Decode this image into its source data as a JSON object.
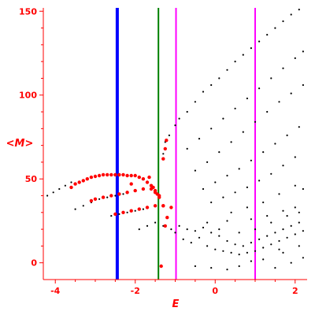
{
  "chart_data": {
    "type": "scatter",
    "title": "",
    "xlabel": "E",
    "ylabel": "<M>",
    "xlim": [
      -4.3,
      2.3
    ],
    "ylim": [
      -10,
      152
    ],
    "x_ticks": [
      -4,
      -2,
      0,
      2
    ],
    "x_tick_labels": [
      "-4",
      "-2",
      "0",
      "2"
    ],
    "y_ticks": [
      0,
      50,
      100,
      150
    ],
    "y_tick_labels": [
      "0",
      "50",
      "100",
      "150"
    ],
    "grid": false,
    "legend": "none",
    "colors": {
      "axis": "#ff0000",
      "points_black": "#000000",
      "points_red": "#ff0000",
      "line_blue": "#0000ff",
      "line_green": "#008000",
      "line_magenta": "#ff00ff"
    },
    "vertical_lines": [
      {
        "x": -2.45,
        "color": "#0000ff",
        "width": 4
      },
      {
        "x": -1.42,
        "color": "#008000",
        "width": 2
      },
      {
        "x": -0.98,
        "color": "#ff00ff",
        "width": 2
      },
      {
        "x": 1.0,
        "color": "#ff00ff",
        "width": 2
      }
    ],
    "series": [
      {
        "color": "#000000",
        "points": [
          [
            -4.2,
            40
          ],
          [
            -4.05,
            42
          ],
          [
            -3.9,
            44
          ],
          [
            -3.75,
            46
          ],
          [
            -3.6,
            48
          ],
          [
            -3.5,
            32
          ],
          [
            -3.3,
            34
          ],
          [
            -3.1,
            36
          ],
          [
            -2.9,
            38
          ],
          [
            -2.7,
            39
          ],
          [
            -2.5,
            40
          ],
          [
            -2.3,
            41
          ],
          [
            -2.6,
            28
          ],
          [
            -2.4,
            29
          ],
          [
            -2.2,
            30
          ],
          [
            -2.0,
            31
          ],
          [
            -1.8,
            32
          ],
          [
            -1.9,
            20
          ],
          [
            -1.7,
            22
          ],
          [
            -1.5,
            24
          ],
          [
            -1.3,
            22
          ],
          [
            -1.1,
            20
          ],
          [
            -1.3,
            65
          ],
          [
            -1.25,
            72
          ],
          [
            -1.15,
            76
          ],
          [
            -1.0,
            82
          ],
          [
            -0.9,
            86
          ],
          [
            -0.7,
            90
          ],
          [
            -0.5,
            96
          ],
          [
            -0.3,
            102
          ],
          [
            -0.1,
            106
          ],
          [
            0.1,
            110
          ],
          [
            0.3,
            115
          ],
          [
            0.5,
            120
          ],
          [
            0.7,
            124
          ],
          [
            0.9,
            128
          ],
          [
            1.1,
            132
          ],
          [
            1.3,
            136
          ],
          [
            1.5,
            140
          ],
          [
            1.7,
            144
          ],
          [
            1.9,
            148
          ],
          [
            2.1,
            151
          ],
          [
            -0.7,
            68
          ],
          [
            -0.4,
            74
          ],
          [
            -0.1,
            80
          ],
          [
            0.2,
            86
          ],
          [
            0.5,
            92
          ],
          [
            0.8,
            98
          ],
          [
            1.1,
            104
          ],
          [
            1.4,
            110
          ],
          [
            1.7,
            116
          ],
          [
            2.0,
            122
          ],
          [
            2.2,
            126
          ],
          [
            -0.5,
            55
          ],
          [
            -0.2,
            60
          ],
          [
            0.1,
            66
          ],
          [
            0.4,
            72
          ],
          [
            0.7,
            78
          ],
          [
            1.0,
            84
          ],
          [
            1.3,
            90
          ],
          [
            1.6,
            96
          ],
          [
            1.9,
            101
          ],
          [
            2.2,
            106
          ],
          [
            -0.3,
            44
          ],
          [
            0.0,
            48
          ],
          [
            0.3,
            52
          ],
          [
            0.6,
            56
          ],
          [
            0.9,
            61
          ],
          [
            1.2,
            66
          ],
          [
            1.5,
            71
          ],
          [
            1.8,
            76
          ],
          [
            2.1,
            81
          ],
          [
            -0.1,
            36
          ],
          [
            0.2,
            39
          ],
          [
            0.5,
            42
          ],
          [
            0.8,
            45
          ],
          [
            1.1,
            49
          ],
          [
            1.4,
            53
          ],
          [
            1.7,
            58
          ],
          [
            2.0,
            63
          ],
          [
            0.4,
            30
          ],
          [
            0.8,
            33
          ],
          [
            1.2,
            36
          ],
          [
            1.6,
            41
          ],
          [
            2.0,
            46
          ],
          [
            2.2,
            44
          ],
          [
            -0.9,
            22
          ],
          [
            -0.7,
            20
          ],
          [
            -0.5,
            19
          ],
          [
            -0.3,
            21
          ],
          [
            -0.1,
            18
          ],
          [
            0.1,
            16
          ],
          [
            0.3,
            13
          ],
          [
            0.5,
            11
          ],
          [
            0.7,
            10
          ],
          [
            0.9,
            12
          ],
          [
            1.1,
            14
          ],
          [
            1.3,
            16
          ],
          [
            1.5,
            18
          ],
          [
            1.7,
            20
          ],
          [
            1.9,
            22
          ],
          [
            2.1,
            24
          ],
          [
            -0.8,
            14
          ],
          [
            -0.6,
            12
          ],
          [
            -0.2,
            10
          ],
          [
            0.0,
            8
          ],
          [
            0.2,
            7
          ],
          [
            0.4,
            6
          ],
          [
            0.6,
            5
          ],
          [
            0.8,
            6
          ],
          [
            1.0,
            7
          ],
          [
            1.2,
            9
          ],
          [
            1.4,
            11
          ],
          [
            1.6,
            13
          ],
          [
            1.8,
            15
          ],
          [
            2.0,
            17
          ],
          [
            2.2,
            19
          ],
          [
            -1.0,
            18
          ],
          [
            -0.4,
            15
          ],
          [
            0.1,
            20
          ],
          [
            0.6,
            18
          ],
          [
            1.0,
            20
          ],
          [
            1.4,
            24
          ],
          [
            1.8,
            28
          ],
          [
            2.1,
            30
          ],
          [
            -0.2,
            24
          ],
          [
            0.3,
            25
          ],
          [
            0.9,
            26
          ],
          [
            1.3,
            28
          ],
          [
            1.7,
            31
          ],
          [
            2.0,
            33
          ],
          [
            -0.5,
            -2
          ],
          [
            -0.1,
            -3
          ],
          [
            0.3,
            -4
          ],
          [
            0.6,
            -2
          ],
          [
            1.5,
            -3
          ],
          [
            1.9,
            0
          ],
          [
            2.2,
            3
          ],
          [
            1.2,
            2
          ],
          [
            0.9,
            1
          ],
          [
            1.7,
            6
          ],
          [
            2.1,
            10
          ],
          [
            1.6,
            8
          ]
        ]
      },
      {
        "color": "#ff0000",
        "points": [
          [
            -3.6,
            45
          ],
          [
            -3.5,
            47
          ],
          [
            -3.4,
            48
          ],
          [
            -3.3,
            49
          ],
          [
            -3.2,
            50
          ],
          [
            -3.1,
            51
          ],
          [
            -3.0,
            51.5
          ],
          [
            -2.9,
            52
          ],
          [
            -2.8,
            52.5
          ],
          [
            -2.7,
            52.5
          ],
          [
            -2.6,
            52.5
          ],
          [
            -2.5,
            52.5
          ],
          [
            -2.4,
            52.5
          ],
          [
            -2.3,
            52.5
          ],
          [
            -2.2,
            52
          ],
          [
            -2.1,
            52
          ],
          [
            -2.0,
            52
          ],
          [
            -1.9,
            51
          ],
          [
            -1.8,
            50
          ],
          [
            -1.7,
            48
          ],
          [
            -1.6,
            46
          ],
          [
            -1.5,
            43
          ],
          [
            -1.45,
            41
          ],
          [
            -3.1,
            37
          ],
          [
            -3.0,
            38
          ],
          [
            -2.8,
            39
          ],
          [
            -2.6,
            40
          ],
          [
            -2.4,
            41
          ],
          [
            -2.2,
            42
          ],
          [
            -2.0,
            43
          ],
          [
            -1.8,
            44
          ],
          [
            -1.6,
            44
          ],
          [
            -1.5,
            42
          ],
          [
            -1.4,
            39
          ],
          [
            -2.5,
            29
          ],
          [
            -2.3,
            30
          ],
          [
            -2.1,
            31
          ],
          [
            -1.9,
            32
          ],
          [
            -1.7,
            33
          ],
          [
            -1.5,
            34
          ],
          [
            -1.3,
            34
          ],
          [
            -1.1,
            33
          ],
          [
            -2.1,
            47
          ],
          [
            -1.65,
            51
          ],
          [
            -1.55,
            45
          ],
          [
            -1.4,
            40
          ],
          [
            -1.3,
            34
          ],
          [
            -1.2,
            27
          ],
          [
            -1.25,
            22
          ],
          [
            -1.3,
            62
          ],
          [
            -1.25,
            68
          ],
          [
            -1.22,
            73
          ],
          [
            -1.35,
            -2
          ]
        ]
      }
    ]
  }
}
